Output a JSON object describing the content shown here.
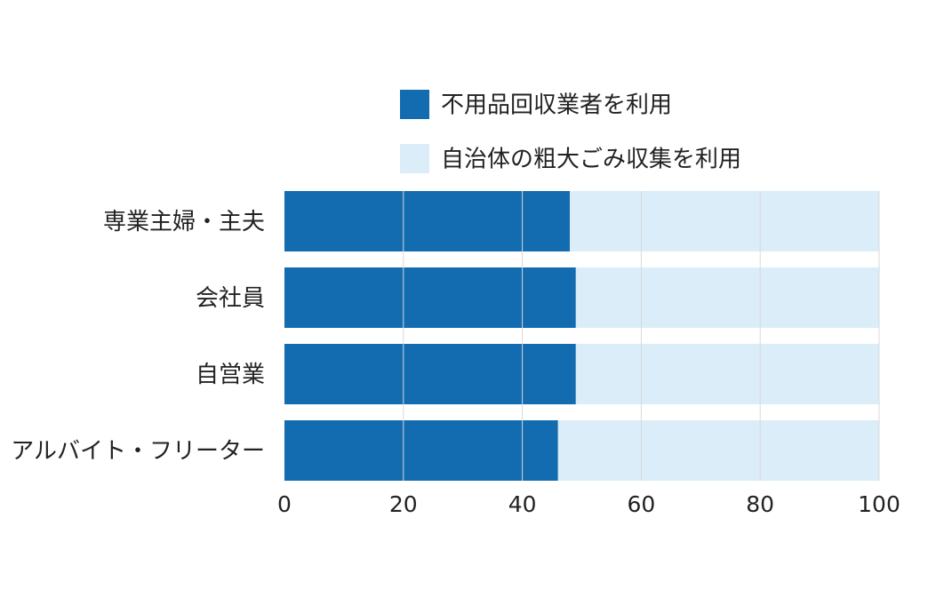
{
  "chart_data": {
    "type": "bar",
    "orientation": "horizontal",
    "stacked": true,
    "title": "",
    "xlabel": "",
    "ylabel": "",
    "xlim": [
      0,
      100
    ],
    "xticks": [
      "0",
      "20",
      "40",
      "60",
      "80",
      "100"
    ],
    "categories": [
      "専業主婦・主夫",
      "会社員",
      "自営業",
      "アルバイト・フリーター"
    ],
    "series": [
      {
        "name": "不用品回収業者を利用",
        "color": "#136bb0",
        "values": [
          48,
          49,
          49,
          46
        ]
      },
      {
        "name": "自治体の粗大ごみ収集を利用",
        "color": "#daedf8",
        "values": [
          52,
          51,
          51,
          54
        ]
      }
    ],
    "grid": true,
    "legend": "top"
  }
}
